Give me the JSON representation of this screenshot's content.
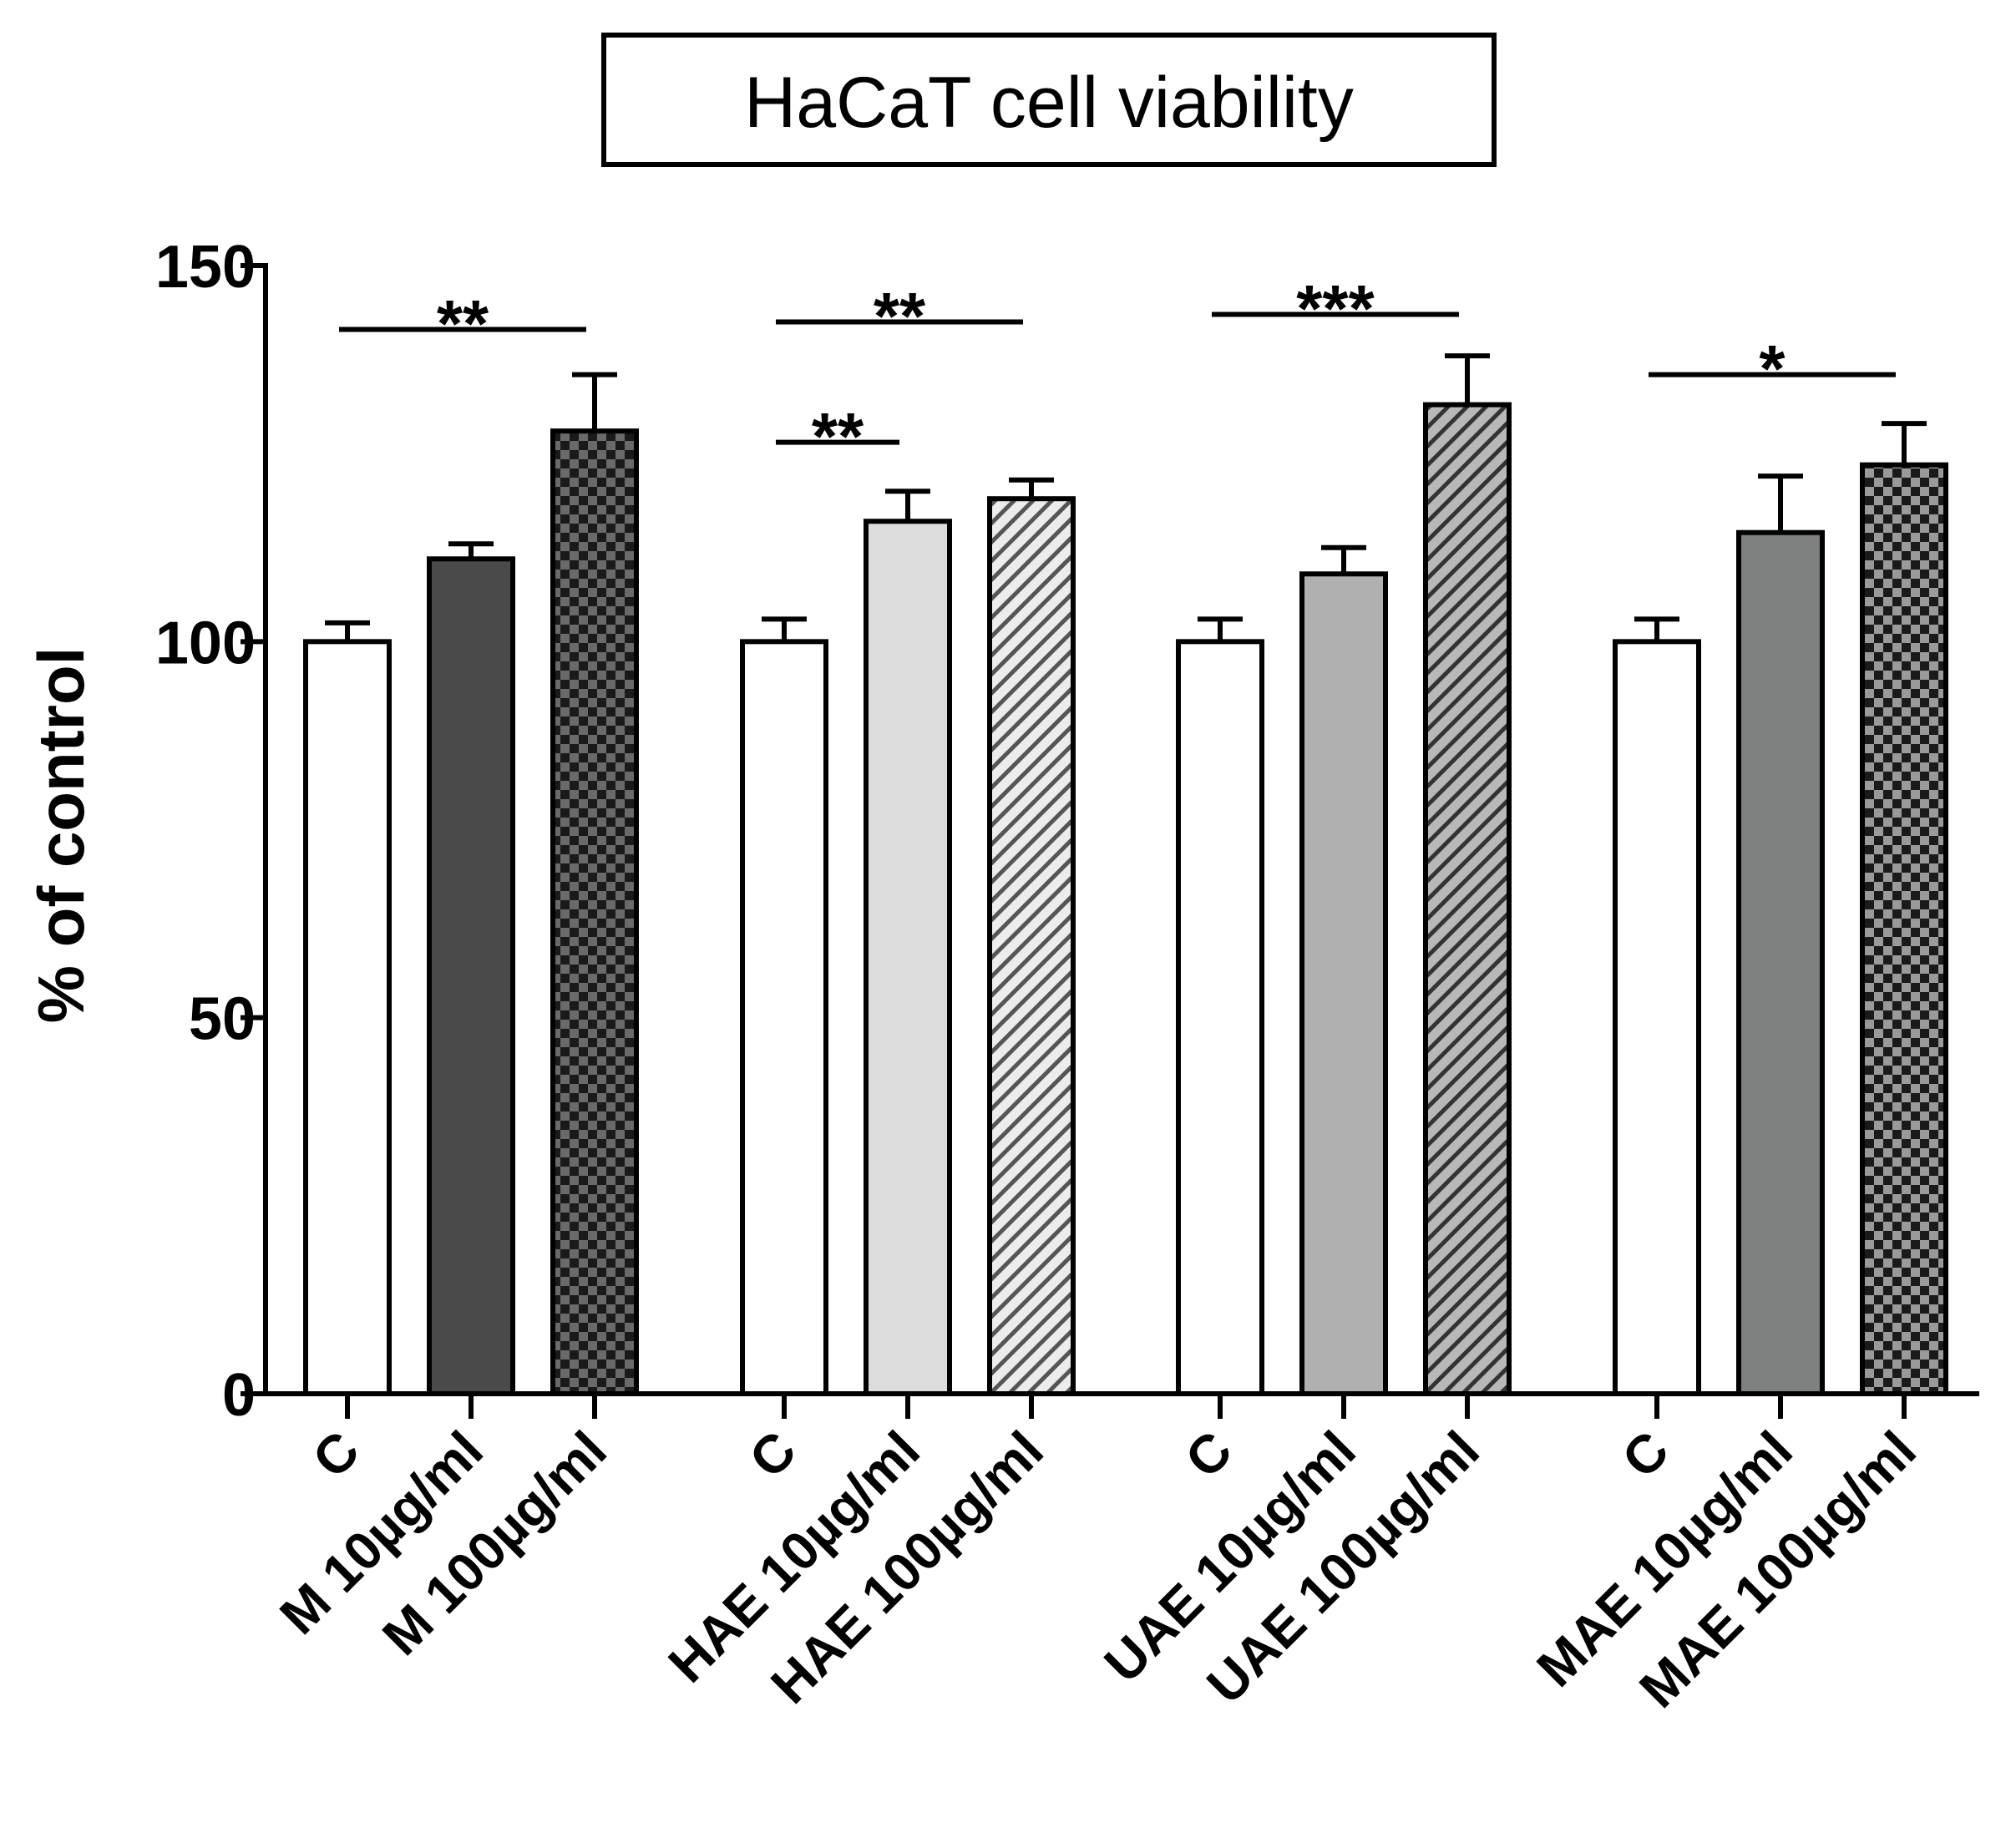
{
  "chart_data": {
    "type": "bar",
    "title": "HaCaT cell viability",
    "xlabel": "",
    "ylabel": "% of control",
    "ylim": [
      0,
      150
    ],
    "yticks": [
      0,
      50,
      100,
      150
    ],
    "grid": false,
    "groups": [
      {
        "name": "M",
        "bars": [
          {
            "label": "C",
            "value": 100,
            "error": 2.5,
            "fill": "white"
          },
          {
            "label": "M 10µg/ml",
            "value": 111,
            "error": 2,
            "fill": "#4a4a4a"
          },
          {
            "label": "M 100µg/ml",
            "value": 128,
            "error": 7.5,
            "fill": "checker-dark"
          }
        ]
      },
      {
        "name": "HAE",
        "bars": [
          {
            "label": "C",
            "value": 100,
            "error": 3,
            "fill": "white"
          },
          {
            "label": "HAE 10µg/ml",
            "value": 116,
            "error": 4,
            "fill": "#dcdcdc"
          },
          {
            "label": "HAE 100µg/ml",
            "value": 119,
            "error": 2.5,
            "fill": "hatch-light"
          }
        ]
      },
      {
        "name": "UAE",
        "bars": [
          {
            "label": "C",
            "value": 100,
            "error": 3,
            "fill": "white"
          },
          {
            "label": "UAE 10µg/ml",
            "value": 109,
            "error": 3.5,
            "fill": "#b0b0b0"
          },
          {
            "label": "UAE 100µg/ml",
            "value": 131.5,
            "error": 6.5,
            "fill": "hatch-gray"
          }
        ]
      },
      {
        "name": "MAE",
        "bars": [
          {
            "label": "C",
            "value": 100,
            "error": 3,
            "fill": "white"
          },
          {
            "label": "MAE 10µg/ml",
            "value": 114.5,
            "error": 7.5,
            "fill": "#7f8180"
          },
          {
            "label": "MAE 100µg/ml",
            "value": 123.5,
            "error": 5.5,
            "fill": "checker-gray"
          }
        ]
      }
    ],
    "annotations": [
      {
        "text": "**",
        "from": [
          0,
          0
        ],
        "to": [
          0,
          2
        ],
        "y": 141.5,
        "label_y": 145
      },
      {
        "text": "**",
        "from": [
          1,
          0
        ],
        "to": [
          1,
          2
        ],
        "y": 142.5,
        "label_y": 146
      },
      {
        "text": "**",
        "from": [
          1,
          0
        ],
        "to": [
          1,
          1
        ],
        "y": 126.5,
        "label_y": 130
      },
      {
        "text": "***",
        "from": [
          2,
          0
        ],
        "to": [
          2,
          2
        ],
        "y": 143.5,
        "label_y": 147
      },
      {
        "text": "*",
        "from": [
          3,
          0
        ],
        "to": [
          3,
          2
        ],
        "y": 135.5,
        "label_y": 139
      }
    ]
  }
}
